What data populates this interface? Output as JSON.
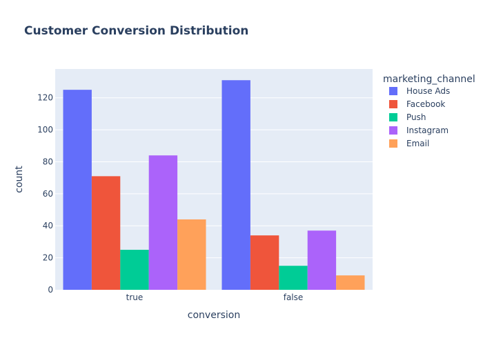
{
  "chart_data": {
    "type": "bar",
    "title": "Customer Conversion Distribution",
    "xlabel": "conversion",
    "ylabel": "count",
    "categories": [
      "true",
      "false"
    ],
    "ylim": [
      0,
      138
    ],
    "yticks": [
      0,
      20,
      40,
      60,
      80,
      100,
      120
    ],
    "grid": true,
    "legend_title": "marketing_channel",
    "legend_position": "right",
    "series": [
      {
        "name": "House Ads",
        "color": "#636efa",
        "values": [
          125,
          131
        ]
      },
      {
        "name": "Facebook",
        "color": "#ef553b",
        "values": [
          71,
          34
        ]
      },
      {
        "name": "Push",
        "color": "#00cc96",
        "values": [
          25,
          15
        ]
      },
      {
        "name": "Instagram",
        "color": "#ab63fa",
        "values": [
          84,
          37
        ]
      },
      {
        "name": "Email",
        "color": "#ffa15a",
        "values": [
          44,
          9
        ]
      }
    ]
  },
  "colors": {
    "plot_background": "#e5ecf6",
    "gridline": "#ffffff",
    "text": "#2a3f5f"
  }
}
